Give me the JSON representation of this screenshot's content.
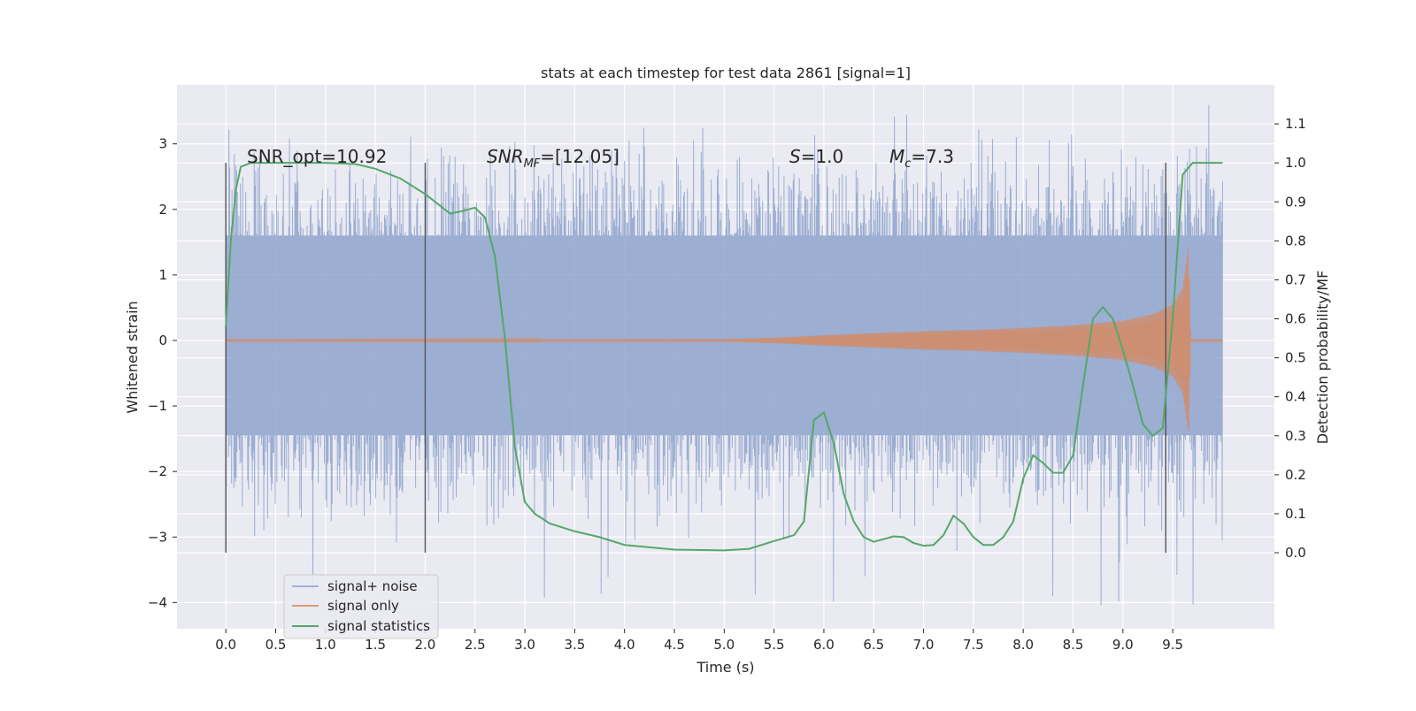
{
  "chart_data": {
    "type": "line",
    "title": "stats at each timestep for test data 2861 [signal=1]",
    "xlabel": "Time (s)",
    "ylabel_left": "Whitened strain",
    "ylabel_right": "Detection probability/MF",
    "xlim": [
      -0.49,
      10.52
    ],
    "ylim_left": [
      -4.4,
      3.9
    ],
    "ylim_right": [
      -0.195,
      1.2
    ],
    "x_ticks": [
      0.0,
      0.5,
      1.0,
      1.5,
      2.0,
      2.5,
      3.0,
      3.5,
      4.0,
      4.5,
      5.0,
      5.5,
      6.0,
      6.5,
      7.0,
      7.5,
      8.0,
      8.5,
      9.0,
      9.5
    ],
    "x_tick_labels": [
      "0.0",
      "0.5",
      "1.0",
      "1.5",
      "2.0",
      "2.5",
      "3.0",
      "3.5",
      "4.0",
      "4.5",
      "5.0",
      "5.5",
      "6.0",
      "6.5",
      "7.0",
      "7.5",
      "8.0",
      "8.5",
      "9.0",
      "9.5"
    ],
    "y_left_ticks": [
      3,
      2,
      1,
      0,
      -1,
      -2,
      -3,
      -4
    ],
    "y_left_tick_labels": [
      "3",
      "2",
      "1",
      "0",
      "−1",
      "−2",
      "−3",
      "−4"
    ],
    "y_right_ticks": [
      1.1,
      1.0,
      0.9,
      0.8,
      0.7,
      0.6,
      0.5,
      0.4,
      0.3,
      0.2,
      0.1,
      0.0
    ],
    "y_right_tick_labels": [
      "1.1",
      "1.0",
      "0.9",
      "0.8",
      "0.7",
      "0.6",
      "0.5",
      "0.4",
      "0.3",
      "0.2",
      "0.1",
      "0.0"
    ],
    "grid": true,
    "legend_position": "lower-left",
    "annotations": {
      "snr_opt": "SNR_opt=10.92",
      "snr_mf_main": "SNR",
      "snr_mf_sub": "MF",
      "snr_mf_value": "=[12.05]",
      "s_main": "S",
      "s_value": "=1.0",
      "mc_main": "M",
      "mc_sub": "c",
      "mc_value": "=7.3"
    },
    "vertical_lines_x": [
      0.0,
      2.0,
      9.43
    ],
    "series": [
      {
        "name": "signal+ noise",
        "color": "#8ea3cc",
        "x_range": [
          0.0,
          10.0
        ],
        "core_envelope": [
          -1.45,
          1.6
        ],
        "peak_range": [
          -4.05,
          3.6
        ]
      },
      {
        "name": "signal only",
        "color": "#dd8452",
        "envelope_points": [
          [
            0.0,
            0.01
          ],
          [
            5.0,
            0.02
          ],
          [
            5.5,
            0.04
          ],
          [
            6.0,
            0.08
          ],
          [
            6.5,
            0.11
          ],
          [
            7.0,
            0.14
          ],
          [
            7.5,
            0.16
          ],
          [
            8.0,
            0.19
          ],
          [
            8.5,
            0.23
          ],
          [
            9.0,
            0.3
          ],
          [
            9.3,
            0.4
          ],
          [
            9.5,
            0.55
          ],
          [
            9.6,
            0.8
          ],
          [
            9.66,
            1.45
          ],
          [
            9.68,
            0.01
          ],
          [
            10.0,
            0.01
          ]
        ]
      },
      {
        "name": "signal statistics",
        "color": "#55a868",
        "points": [
          [
            0.0,
            0.58
          ],
          [
            0.05,
            0.8
          ],
          [
            0.1,
            0.93
          ],
          [
            0.15,
            0.99
          ],
          [
            0.25,
            1.0
          ],
          [
            0.5,
            1.0
          ],
          [
            1.0,
            1.0
          ],
          [
            1.3,
            0.997
          ],
          [
            1.5,
            0.985
          ],
          [
            1.75,
            0.96
          ],
          [
            2.0,
            0.92
          ],
          [
            2.15,
            0.89
          ],
          [
            2.25,
            0.87
          ],
          [
            2.35,
            0.875
          ],
          [
            2.5,
            0.885
          ],
          [
            2.6,
            0.86
          ],
          [
            2.7,
            0.76
          ],
          [
            2.8,
            0.55
          ],
          [
            2.9,
            0.27
          ],
          [
            3.0,
            0.13
          ],
          [
            3.1,
            0.1
          ],
          [
            3.25,
            0.075
          ],
          [
            3.5,
            0.055
          ],
          [
            3.75,
            0.04
          ],
          [
            4.0,
            0.02
          ],
          [
            4.5,
            0.008
          ],
          [
            5.0,
            0.006
          ],
          [
            5.25,
            0.01
          ],
          [
            5.5,
            0.03
          ],
          [
            5.7,
            0.045
          ],
          [
            5.8,
            0.08
          ],
          [
            5.9,
            0.34
          ],
          [
            6.0,
            0.36
          ],
          [
            6.1,
            0.28
          ],
          [
            6.2,
            0.15
          ],
          [
            6.3,
            0.08
          ],
          [
            6.4,
            0.04
          ],
          [
            6.5,
            0.028
          ],
          [
            6.6,
            0.035
          ],
          [
            6.7,
            0.042
          ],
          [
            6.8,
            0.04
          ],
          [
            6.9,
            0.025
          ],
          [
            7.0,
            0.018
          ],
          [
            7.1,
            0.02
          ],
          [
            7.2,
            0.045
          ],
          [
            7.3,
            0.095
          ],
          [
            7.4,
            0.075
          ],
          [
            7.5,
            0.04
          ],
          [
            7.6,
            0.02
          ],
          [
            7.7,
            0.02
          ],
          [
            7.8,
            0.04
          ],
          [
            7.9,
            0.08
          ],
          [
            8.0,
            0.19
          ],
          [
            8.1,
            0.25
          ],
          [
            8.2,
            0.23
          ],
          [
            8.3,
            0.205
          ],
          [
            8.4,
            0.205
          ],
          [
            8.5,
            0.25
          ],
          [
            8.6,
            0.43
          ],
          [
            8.7,
            0.6
          ],
          [
            8.8,
            0.63
          ],
          [
            8.9,
            0.6
          ],
          [
            9.0,
            0.52
          ],
          [
            9.1,
            0.43
          ],
          [
            9.2,
            0.33
          ],
          [
            9.3,
            0.3
          ],
          [
            9.4,
            0.32
          ],
          [
            9.5,
            0.6
          ],
          [
            9.6,
            0.97
          ],
          [
            9.7,
            1.0
          ],
          [
            9.85,
            1.0
          ],
          [
            10.0,
            1.0
          ]
        ]
      }
    ]
  }
}
